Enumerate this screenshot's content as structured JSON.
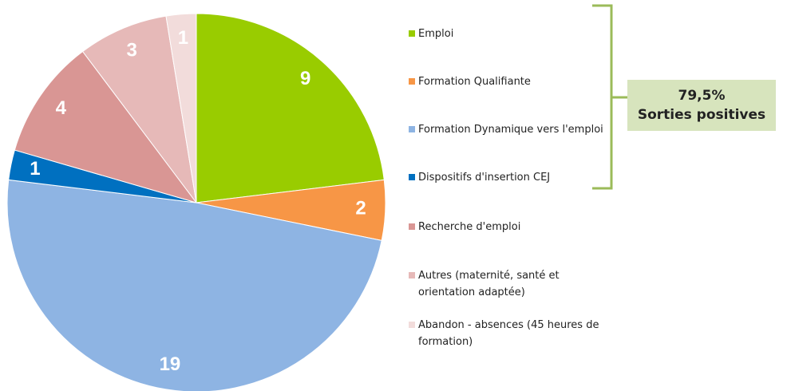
{
  "chart_data": {
    "type": "pie",
    "categories": [
      "Emploi",
      "Formation Qualifiante",
      "Formation Dynamique vers l'emploi",
      "Dispositifs d'insertion CEJ",
      "Recherche  d'emploi",
      "Autres (maternité, santé et orientation adaptée)",
      "Abandon - absences (45 heures de formation)"
    ],
    "values": [
      9,
      2,
      19,
      1,
      4,
      3,
      1
    ],
    "colors": [
      "#99cc00",
      "#f79646",
      "#8eb4e3",
      "#0070c0",
      "#d99694",
      "#e6b9b8",
      "#f2dcdb"
    ],
    "annotations": [
      "79,5%",
      "Sorties positives"
    ]
  }
}
